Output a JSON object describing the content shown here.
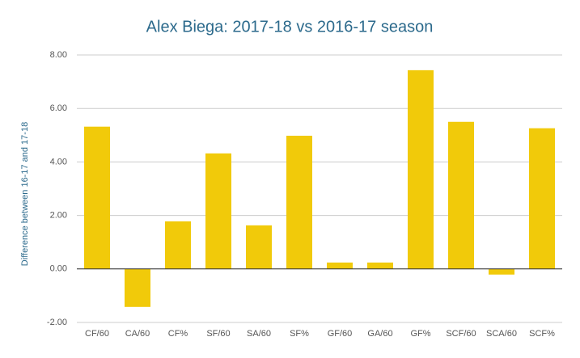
{
  "chart_data": {
    "type": "bar",
    "title": "Alex Biega: 2017-18 vs 2016-17 season",
    "y_label": "Difference between 16-17 and 17-18",
    "categories": [
      "CF/60",
      "CA/60",
      "CF%",
      "SF/60",
      "SA/60",
      "SF%",
      "GF/60",
      "GA/60",
      "GF%",
      "SCF/60",
      "SCA/60",
      "SCF%"
    ],
    "values": [
      5.32,
      -1.42,
      1.78,
      4.32,
      1.63,
      4.98,
      0.24,
      0.24,
      7.43,
      5.5,
      -0.21,
      5.26
    ],
    "color": "#f1ca0a",
    "ylim": [
      -2,
      8
    ],
    "yticks": [
      {
        "value": -2,
        "label": "-2.00"
      },
      {
        "value": 0,
        "label": "0.00"
      },
      {
        "value": 2,
        "label": "2.00"
      },
      {
        "value": 4,
        "label": "4.00"
      },
      {
        "value": 6,
        "label": "6.00"
      },
      {
        "value": 8,
        "label": "8.00"
      }
    ],
    "grid": true
  }
}
